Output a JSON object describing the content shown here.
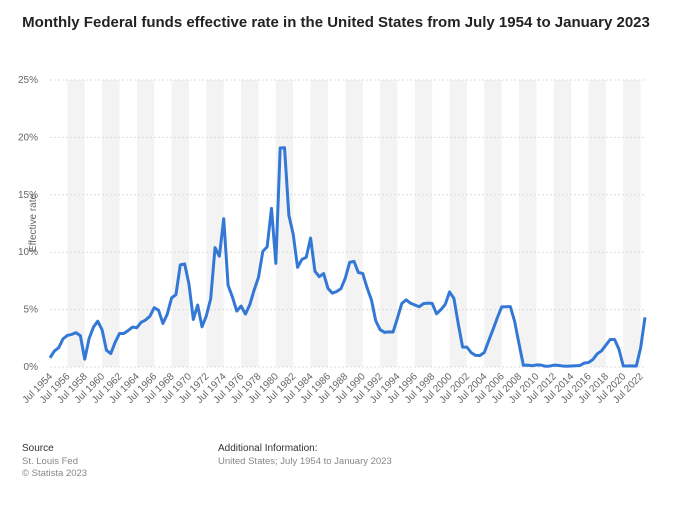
{
  "chart_data": {
    "type": "line",
    "title": "Monthly Federal funds effective rate in the United States from July 1954 to January 2023",
    "y_label": "Effective rate",
    "categories": [
      "Jul 1954",
      null,
      null,
      null,
      "Jul 1956",
      null,
      null,
      null,
      "Jul 1958",
      null,
      null,
      null,
      "Jul 1960",
      null,
      null,
      null,
      "Jul 1962",
      null,
      null,
      null,
      "Jul 1964",
      null,
      null,
      null,
      "Jul 1966",
      null,
      null,
      null,
      "Jul 1968",
      null,
      null,
      null,
      "Jul 1970",
      null,
      null,
      null,
      "Jul 1972",
      null,
      null,
      null,
      "Jul 1974",
      null,
      null,
      null,
      "Jul 1976",
      null,
      null,
      null,
      "Jul 1978",
      null,
      null,
      null,
      "Jul 1980",
      null,
      null,
      null,
      "Jul 1982",
      null,
      null,
      null,
      "Jul 1984",
      null,
      null,
      null,
      "Jul 1986",
      null,
      null,
      null,
      "Jul 1988",
      null,
      null,
      null,
      "Jul 1990",
      null,
      null,
      null,
      "Jul 1992",
      null,
      null,
      null,
      "Jul 1994",
      null,
      null,
      null,
      "Jul 1996",
      null,
      null,
      null,
      "Jul 1998",
      null,
      null,
      null,
      "Jul 2000",
      null,
      null,
      null,
      "Jul 2002",
      null,
      null,
      null,
      "Jul 2004",
      null,
      null,
      null,
      "Jul 2006",
      null,
      null,
      null,
      "Jul 2008",
      null,
      null,
      null,
      "Jul 2010",
      null,
      null,
      null,
      "Jul 2012",
      null,
      null,
      null,
      "Jul 2014",
      null,
      null,
      null,
      "Jul 2016",
      null,
      null,
      null,
      "Jul 2018",
      null,
      null,
      null,
      "Jul 2020",
      null,
      null,
      null,
      "Jul 2022",
      null
    ],
    "values": [
      0.8,
      1.39,
      1.68,
      2.45,
      2.75,
      2.84,
      2.99,
      2.72,
      0.68,
      2.48,
      3.47,
      3.99,
      3.23,
      1.45,
      1.17,
      2.15,
      2.92,
      2.92,
      3.18,
      3.48,
      3.42,
      3.9,
      4.09,
      4.42,
      5.17,
      4.94,
      3.79,
      4.61,
      6.02,
      6.3,
      8.9,
      8.98,
      7.21,
      4.14,
      5.4,
      3.5,
      4.46,
      5.94,
      10.4,
      9.65,
      12.92,
      7.13,
      6.1,
      4.87,
      5.31,
      4.61,
      5.42,
      6.7,
      7.81,
      10.07,
      10.47,
      13.82,
      9.03,
      19.08,
      19.1,
      13.22,
      11.56,
      8.68,
      9.37,
      9.56,
      11.23,
      8.35,
      7.87,
      8.14,
      6.85,
      6.43,
      6.58,
      6.83,
      7.75,
      9.12,
      9.2,
      8.23,
      8.15,
      6.91,
      5.86,
      4.03,
      3.26,
      3.02,
      3.06,
      3.05,
      4.26,
      5.53,
      5.85,
      5.56,
      5.4,
      5.25,
      5.52,
      5.56,
      5.54,
      4.63,
      4.99,
      5.45,
      6.54,
      5.98,
      3.77,
      1.73,
      1.73,
      1.24,
      1.01,
      1.0,
      1.26,
      2.28,
      3.26,
      4.29,
      5.24,
      5.25,
      5.26,
      3.94,
      2.01,
      0.15,
      0.16,
      0.11,
      0.18,
      0.17,
      0.07,
      0.08,
      0.16,
      0.14,
      0.09,
      0.07,
      0.09,
      0.11,
      0.13,
      0.34,
      0.39,
      0.65,
      1.15,
      1.41,
      1.91,
      2.4,
      2.4,
      1.55,
      0.09,
      0.09,
      0.1,
      0.08,
      1.68,
      4.33
    ],
    "color": "#3478d6",
    "ylim": [
      0,
      25
    ],
    "yticks": [
      {
        "value": 0,
        "label": "0%"
      },
      {
        "value": 5,
        "label": "5%"
      },
      {
        "value": 10,
        "label": "10%"
      },
      {
        "value": 15,
        "label": "15%"
      },
      {
        "value": 20,
        "label": "20%"
      },
      {
        "value": 25,
        "label": "25%"
      }
    ],
    "grid": true
  },
  "footer": {
    "source_heading": "Source",
    "source": "St. Louis Fed",
    "copyright": "© Statista 2023",
    "info_heading": "Additional Information:",
    "info": "United States; July 1954 to January 2023"
  }
}
